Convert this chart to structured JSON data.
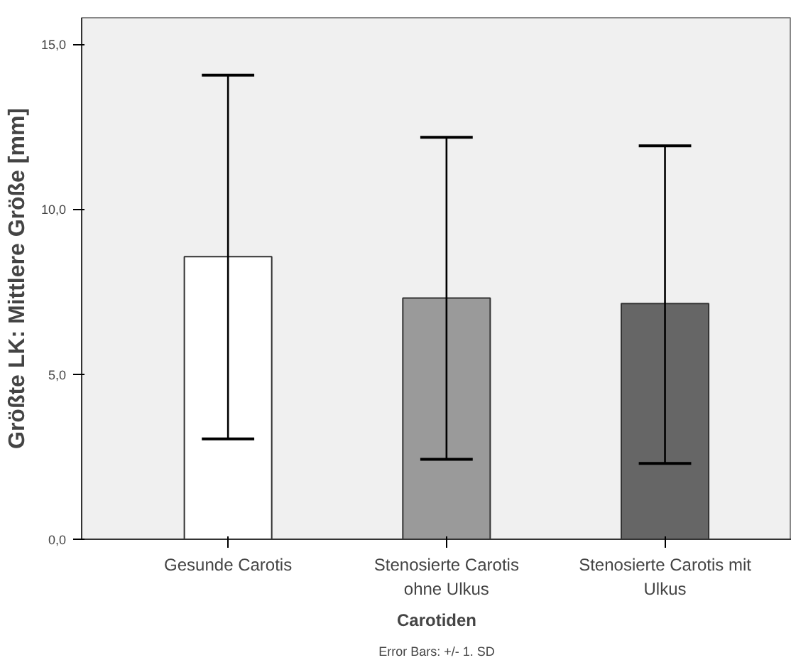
{
  "chart_data": {
    "type": "bar",
    "xlabel": "Carotiden",
    "ylabel": "Größte LK: Mittlere Größe [mm]",
    "categories": [
      "Gesunde Carotis",
      "Stenosierte Carotis\nohne Ulkus",
      "Stenosierte Carotis mit\nUlkus"
    ],
    "values": [
      8.56,
      7.31,
      7.14
    ],
    "colors": [
      "#ffffff",
      "#9a9a9a",
      "#666666"
    ],
    "errors": [
      [
        3.04,
        14.06
      ],
      [
        2.42,
        12.18
      ],
      [
        2.3,
        11.92
      ]
    ],
    "ylim": [
      0,
      15.8
    ],
    "yticks": [
      {
        "value": 0,
        "label": "0,0"
      },
      {
        "value": 5,
        "label": "5,0"
      },
      {
        "value": 10,
        "label": "10,0"
      },
      {
        "value": 15,
        "label": "15,0"
      }
    ],
    "grid": false,
    "annotations": [
      "Error Bars: +/- 1. SD"
    ]
  }
}
